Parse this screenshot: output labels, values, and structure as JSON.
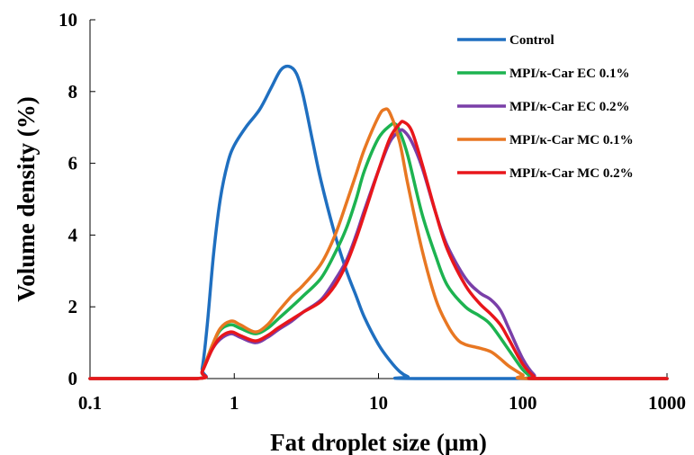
{
  "chart_data": {
    "type": "line",
    "title": "",
    "xlabel": "Fat droplet size (µm)",
    "ylabel": "Volume density (%)",
    "xscale": "log",
    "xlim": [
      0.1,
      1000
    ],
    "ylim": [
      0,
      10
    ],
    "x_ticks": [
      0.1,
      1,
      10,
      100,
      1000
    ],
    "x_tick_labels": [
      "0.1",
      "1",
      "10",
      "100",
      "1000"
    ],
    "y_ticks": [
      0,
      2,
      4,
      6,
      8,
      10
    ],
    "y_tick_labels": [
      "0",
      "2",
      "4",
      "6",
      "8",
      "10"
    ],
    "grid": false,
    "legend_position": "top-right",
    "series": [
      {
        "name": "Control",
        "color": "#1F6FC0",
        "points": [
          [
            0.1,
            0
          ],
          [
            0.55,
            0
          ],
          [
            0.6,
            0.3
          ],
          [
            0.65,
            1.5
          ],
          [
            0.72,
            3.5
          ],
          [
            0.8,
            5.0
          ],
          [
            0.9,
            6.0
          ],
          [
            1.0,
            6.5
          ],
          [
            1.2,
            7.0
          ],
          [
            1.5,
            7.5
          ],
          [
            1.8,
            8.1
          ],
          [
            2.1,
            8.6
          ],
          [
            2.4,
            8.7
          ],
          [
            2.7,
            8.5
          ],
          [
            3.0,
            7.9
          ],
          [
            3.5,
            6.6
          ],
          [
            4.0,
            5.5
          ],
          [
            5.0,
            4.0
          ],
          [
            6.0,
            3.0
          ],
          [
            7.0,
            2.3
          ],
          [
            8.0,
            1.7
          ],
          [
            10,
            0.95
          ],
          [
            12,
            0.5
          ],
          [
            14,
            0.2
          ],
          [
            16,
            0.05
          ],
          [
            18,
            0
          ],
          [
            1000,
            0
          ]
        ]
      },
      {
        "name": "MPI/κ-Car EC 0.1%",
        "color": "#1DB350",
        "points": [
          [
            0.1,
            0
          ],
          [
            0.55,
            0
          ],
          [
            0.6,
            0.2
          ],
          [
            0.7,
            0.9
          ],
          [
            0.8,
            1.35
          ],
          [
            0.95,
            1.5
          ],
          [
            1.1,
            1.4
          ],
          [
            1.4,
            1.25
          ],
          [
            1.7,
            1.4
          ],
          [
            2.0,
            1.65
          ],
          [
            2.5,
            2.0
          ],
          [
            3.0,
            2.3
          ],
          [
            4.0,
            2.8
          ],
          [
            5.0,
            3.5
          ],
          [
            6.0,
            4.2
          ],
          [
            7.0,
            5.0
          ],
          [
            8.0,
            5.8
          ],
          [
            10,
            6.7
          ],
          [
            12,
            7.05
          ],
          [
            13,
            7.1
          ],
          [
            14,
            6.9
          ],
          [
            16,
            6.2
          ],
          [
            20,
            4.6
          ],
          [
            25,
            3.4
          ],
          [
            30,
            2.6
          ],
          [
            40,
            2.0
          ],
          [
            50,
            1.75
          ],
          [
            60,
            1.5
          ],
          [
            80,
            0.8
          ],
          [
            100,
            0.25
          ],
          [
            115,
            0.05
          ],
          [
            125,
            0
          ],
          [
            1000,
            0
          ]
        ]
      },
      {
        "name": "MPI/κ-Car EC 0.2%",
        "color": "#7A3FA8",
        "points": [
          [
            0.1,
            0
          ],
          [
            0.55,
            0
          ],
          [
            0.6,
            0.2
          ],
          [
            0.7,
            0.8
          ],
          [
            0.8,
            1.1
          ],
          [
            0.95,
            1.25
          ],
          [
            1.1,
            1.15
          ],
          [
            1.4,
            1.0
          ],
          [
            1.7,
            1.15
          ],
          [
            2.0,
            1.35
          ],
          [
            2.5,
            1.6
          ],
          [
            3.0,
            1.85
          ],
          [
            4.0,
            2.2
          ],
          [
            5.0,
            2.75
          ],
          [
            6.0,
            3.3
          ],
          [
            7.0,
            4.0
          ],
          [
            8.0,
            4.7
          ],
          [
            10,
            5.8
          ],
          [
            12,
            6.6
          ],
          [
            14,
            6.9
          ],
          [
            15,
            6.9
          ],
          [
            17,
            6.6
          ],
          [
            20,
            5.9
          ],
          [
            25,
            4.6
          ],
          [
            30,
            3.7
          ],
          [
            40,
            2.8
          ],
          [
            50,
            2.4
          ],
          [
            60,
            2.2
          ],
          [
            70,
            1.9
          ],
          [
            80,
            1.4
          ],
          [
            100,
            0.55
          ],
          [
            120,
            0.1
          ],
          [
            135,
            0
          ],
          [
            1000,
            0
          ]
        ]
      },
      {
        "name": "MPI/κ-Car MC 0.1%",
        "color": "#E87722",
        "points": [
          [
            0.1,
            0
          ],
          [
            0.55,
            0
          ],
          [
            0.6,
            0.2
          ],
          [
            0.7,
            0.9
          ],
          [
            0.8,
            1.4
          ],
          [
            0.95,
            1.6
          ],
          [
            1.1,
            1.5
          ],
          [
            1.4,
            1.3
          ],
          [
            1.7,
            1.5
          ],
          [
            2.0,
            1.85
          ],
          [
            2.5,
            2.3
          ],
          [
            3.0,
            2.6
          ],
          [
            4.0,
            3.2
          ],
          [
            5.0,
            4.0
          ],
          [
            6.0,
            4.9
          ],
          [
            7.0,
            5.7
          ],
          [
            8.0,
            6.4
          ],
          [
            10,
            7.3
          ],
          [
            11,
            7.5
          ],
          [
            12,
            7.4
          ],
          [
            14,
            6.6
          ],
          [
            16,
            5.4
          ],
          [
            20,
            3.6
          ],
          [
            25,
            2.2
          ],
          [
            30,
            1.5
          ],
          [
            35,
            1.1
          ],
          [
            40,
            0.95
          ],
          [
            50,
            0.85
          ],
          [
            60,
            0.75
          ],
          [
            70,
            0.55
          ],
          [
            80,
            0.35
          ],
          [
            100,
            0.1
          ],
          [
            110,
            0
          ],
          [
            1000,
            0
          ]
        ]
      },
      {
        "name": "MPI/κ-Car MC 0.2%",
        "color": "#E8161B",
        "points": [
          [
            0.1,
            0
          ],
          [
            0.55,
            0
          ],
          [
            0.6,
            0.2
          ],
          [
            0.7,
            0.8
          ],
          [
            0.8,
            1.15
          ],
          [
            0.95,
            1.3
          ],
          [
            1.1,
            1.2
          ],
          [
            1.4,
            1.05
          ],
          [
            1.7,
            1.2
          ],
          [
            2.0,
            1.4
          ],
          [
            2.5,
            1.65
          ],
          [
            3.0,
            1.85
          ],
          [
            4.0,
            2.15
          ],
          [
            5.0,
            2.6
          ],
          [
            6.0,
            3.2
          ],
          [
            7.0,
            3.9
          ],
          [
            8.0,
            4.6
          ],
          [
            10,
            5.8
          ],
          [
            12,
            6.7
          ],
          [
            14,
            7.1
          ],
          [
            15,
            7.15
          ],
          [
            17,
            6.9
          ],
          [
            20,
            6.0
          ],
          [
            25,
            4.6
          ],
          [
            30,
            3.6
          ],
          [
            40,
            2.6
          ],
          [
            50,
            2.1
          ],
          [
            60,
            1.8
          ],
          [
            70,
            1.5
          ],
          [
            80,
            1.1
          ],
          [
            100,
            0.4
          ],
          [
            120,
            0.05
          ],
          [
            130,
            0
          ],
          [
            1000,
            0
          ]
        ]
      }
    ]
  }
}
